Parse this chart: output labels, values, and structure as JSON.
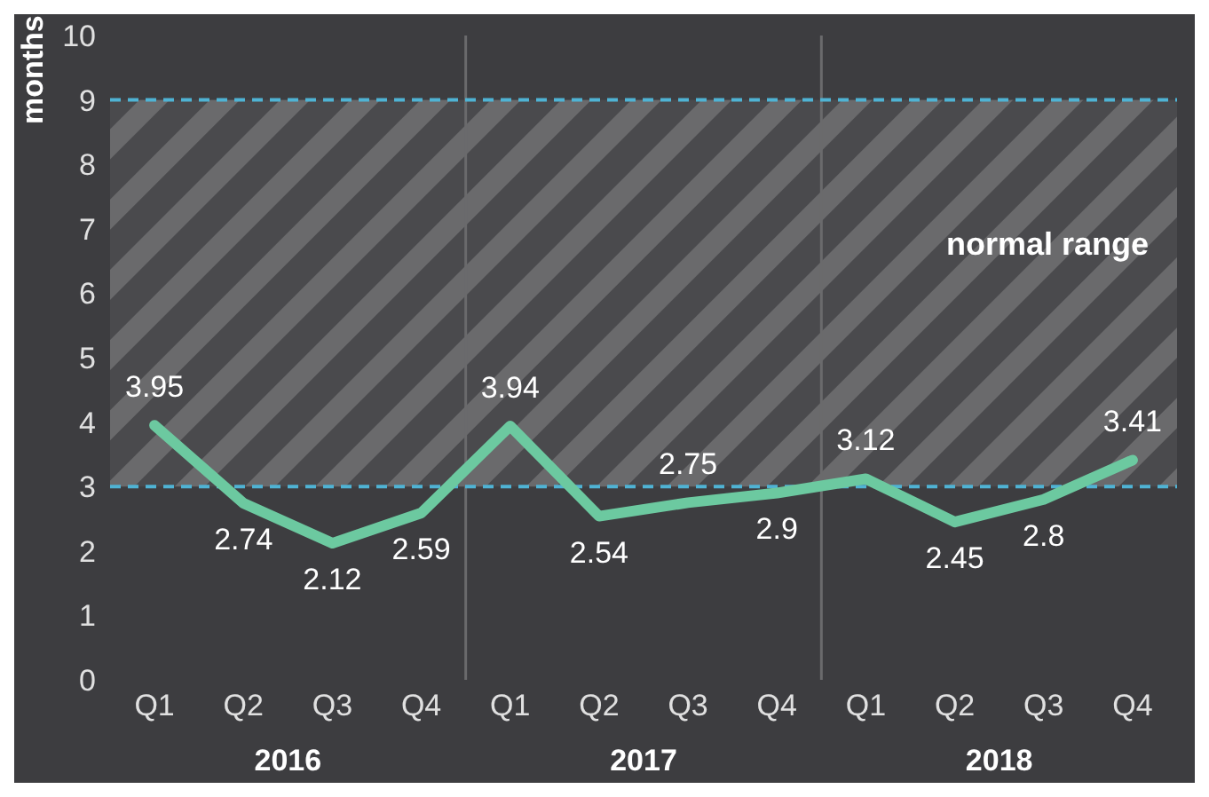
{
  "chart_data": {
    "type": "line",
    "ylabel": "months",
    "categories": [
      "Q1",
      "Q2",
      "Q3",
      "Q4",
      "Q1",
      "Q2",
      "Q3",
      "Q4",
      "Q1",
      "Q2",
      "Q3",
      "Q4"
    ],
    "series": [
      {
        "color": "#6cc9a0",
        "values": [
          3.95,
          2.74,
          2.12,
          2.59,
          3.94,
          2.54,
          2.75,
          2.9,
          3.12,
          2.45,
          2.8,
          3.41
        ]
      }
    ],
    "ylim": [
      0,
      10
    ],
    "yticks": [
      0,
      1,
      2,
      3,
      4,
      5,
      6,
      7,
      8,
      9,
      10
    ],
    "data_labels": true,
    "marker": "none",
    "line_style": "solid",
    "bands": [
      {
        "axis": "y",
        "from": 3,
        "to": 9,
        "label": "normal range",
        "color": "#6a6a6c"
      }
    ],
    "ref_lines": [
      {
        "axis": "y",
        "value": 3,
        "color": "#4fb3d4",
        "line_style": "dashed"
      },
      {
        "axis": "y",
        "value": 9,
        "color": "#4fb3d4",
        "line_style": "dashed"
      }
    ],
    "annotations": [
      "2016",
      "2017",
      "2018"
    ]
  }
}
